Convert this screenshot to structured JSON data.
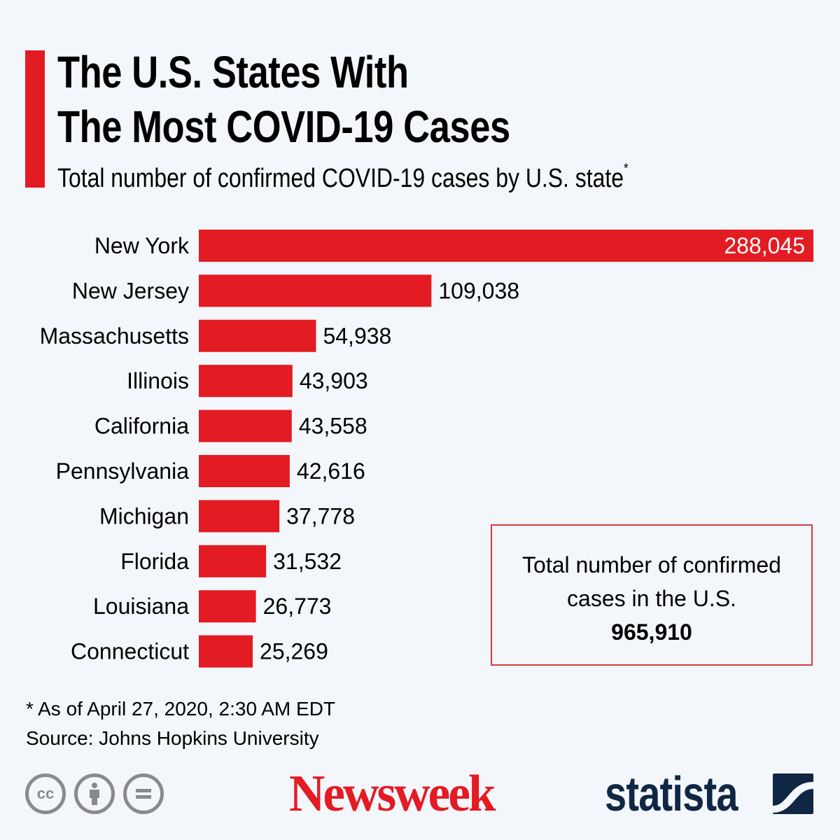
{
  "header": {
    "title_line1": "The U.S. States With",
    "title_line2": "The Most COVID-19 Cases",
    "subtitle": "Total number of confirmed COVID-19 cases by U.S. state",
    "subtitle_marker": "*"
  },
  "chart_data": {
    "type": "bar",
    "orientation": "horizontal",
    "title": "The U.S. States With The Most COVID-19 Cases",
    "subtitle": "Total number of confirmed COVID-19 cases by U.S. state*",
    "xlabel": "",
    "ylabel": "",
    "grid": false,
    "categories": [
      "New York",
      "New Jersey",
      "Massachusetts",
      "Illinois",
      "California",
      "Pennsylvania",
      "Michigan",
      "Florida",
      "Louisiana",
      "Connecticut"
    ],
    "values": [
      288045,
      109038,
      54938,
      43903,
      43558,
      42616,
      37778,
      31532,
      26773,
      25269
    ],
    "value_labels": [
      "288,045",
      "109,038",
      "54,938",
      "43,903",
      "43,558",
      "42,616",
      "37,778",
      "31,532",
      "26,773",
      "25,269"
    ],
    "xlim": [
      0,
      288045
    ],
    "bar_color": "#e31b23"
  },
  "total_box": {
    "text": "Total number of confirmed cases in the U.S.",
    "value": "965,910"
  },
  "footer": {
    "note": "* As of April 27, 2020, 2:30 AM EDT",
    "source": "Source: Johns Hopkins University",
    "license_icons": [
      "cc-icon",
      "attribution-icon",
      "no-derivatives-icon"
    ],
    "newsweek_logo": "Newsweek",
    "statista_logo": "statista"
  },
  "colors": {
    "accent": "#e31b23",
    "background": "#f3f6fa",
    "statista_navy": "#0f2744",
    "icon_gray": "#8a8a8a"
  }
}
